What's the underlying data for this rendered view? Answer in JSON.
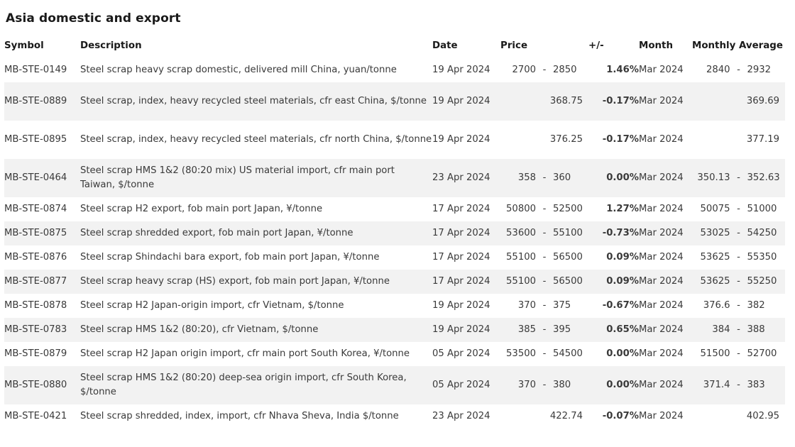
{
  "section": {
    "title": "Asia domestic and export"
  },
  "colors": {
    "positive": "#1e9a5a",
    "negative": "#d21c32",
    "neutral": "#a8a8a8",
    "row_stripe": "#f2f2f2"
  },
  "table": {
    "headers": {
      "symbol": "Symbol",
      "description": "Description",
      "date": "Date",
      "price": "Price",
      "change": "+/-",
      "month": "Month",
      "monthly_average": "Monthly Average"
    },
    "rows": [
      {
        "symbol": "MB-STE-0149",
        "description": "Steel scrap heavy scrap domestic, delivered mill China, yuan/tonne",
        "date": "19 Apr 2024",
        "price_low": "2700",
        "price_high": "2850",
        "change": "1.46%",
        "change_dir": "pos",
        "month": "Mar 2024",
        "avg_low": "2840",
        "avg_high": "2932"
      },
      {
        "symbol": "MB-STE-0889",
        "description": "Steel scrap, index, heavy recycled steel materials, cfr east China, $/tonne",
        "date": "19 Apr 2024",
        "price": "368.75",
        "change": "-0.17%",
        "change_dir": "neg",
        "month": "Mar 2024",
        "avg": "369.69"
      },
      {
        "symbol": "MB-STE-0895",
        "description": "Steel scrap, index, heavy recycled steel materials, cfr north China, $/tonne",
        "date": "19 Apr 2024",
        "price": "376.25",
        "change": "-0.17%",
        "change_dir": "neg",
        "month": "Mar 2024",
        "avg": "377.19"
      },
      {
        "symbol": "MB-STE-0464",
        "description": "Steel scrap HMS 1&2 (80:20 mix) US material import, cfr main port Taiwan, $/tonne",
        "date": "23 Apr 2024",
        "price_low": "358",
        "price_high": "360",
        "change": "0.00%",
        "change_dir": "flat",
        "month": "Mar 2024",
        "avg_low": "350.13",
        "avg_high": "352.63"
      },
      {
        "symbol": "MB-STE-0874",
        "description": "Steel scrap H2 export, fob main port Japan, ¥/tonne",
        "date": "17 Apr 2024",
        "price_low": "50800",
        "price_high": "52500",
        "change": "1.27%",
        "change_dir": "pos",
        "month": "Mar 2024",
        "avg_low": "50075",
        "avg_high": "51000"
      },
      {
        "symbol": "MB-STE-0875",
        "description": "Steel scrap shredded export, fob main port Japan, ¥/tonne",
        "date": "17 Apr 2024",
        "price_low": "53600",
        "price_high": "55100",
        "change": "-0.73%",
        "change_dir": "neg",
        "month": "Mar 2024",
        "avg_low": "53025",
        "avg_high": "54250"
      },
      {
        "symbol": "MB-STE-0876",
        "description": "Steel scrap Shindachi bara export, fob main port Japan, ¥/tonne",
        "date": "17 Apr 2024",
        "price_low": "55100",
        "price_high": "56500",
        "change": "0.09%",
        "change_dir": "pos",
        "month": "Mar 2024",
        "avg_low": "53625",
        "avg_high": "55350"
      },
      {
        "symbol": "MB-STE-0877",
        "description": "Steel scrap heavy scrap (HS) export, fob main port Japan, ¥/tonne",
        "date": "17 Apr 2024",
        "price_low": "55100",
        "price_high": "56500",
        "change": "0.09%",
        "change_dir": "pos",
        "month": "Mar 2024",
        "avg_low": "53625",
        "avg_high": "55250"
      },
      {
        "symbol": "MB-STE-0878",
        "description": "Steel scrap H2 Japan-origin import, cfr Vietnam, $/tonne",
        "date": "19 Apr 2024",
        "price_low": "370",
        "price_high": "375",
        "change": "-0.67%",
        "change_dir": "neg",
        "month": "Mar 2024",
        "avg_low": "376.6",
        "avg_high": "382"
      },
      {
        "symbol": "MB-STE-0783",
        "description": "Steel scrap HMS 1&2 (80:20), cfr Vietnam, $/tonne",
        "date": "19 Apr 2024",
        "price_low": "385",
        "price_high": "395",
        "change": "0.65%",
        "change_dir": "pos",
        "month": "Mar 2024",
        "avg_low": "384",
        "avg_high": "388"
      },
      {
        "symbol": "MB-STE-0879",
        "description": "Steel scrap H2 Japan origin import, cfr main port South Korea, ¥/tonne",
        "date": "05 Apr 2024",
        "price_low": "53500",
        "price_high": "54500",
        "change": "0.00%",
        "change_dir": "flat",
        "month": "Mar 2024",
        "avg_low": "51500",
        "avg_high": "52700"
      },
      {
        "symbol": "MB-STE-0880",
        "description": "Steel scrap HMS 1&2 (80:20) deep-sea origin import, cfr South Korea, $/tonne",
        "date": "05 Apr 2024",
        "price_low": "370",
        "price_high": "380",
        "change": "0.00%",
        "change_dir": "flat",
        "month": "Mar 2024",
        "avg_low": "371.4",
        "avg_high": "383"
      },
      {
        "symbol": "MB-STE-0421",
        "description": "Steel scrap shredded, index, import, cfr Nhava Sheva, India $/tonne",
        "date": "23 Apr 2024",
        "price": "422.74",
        "change": "-0.07%",
        "change_dir": "neg",
        "month": "Mar 2024",
        "avg": "402.95"
      }
    ]
  }
}
